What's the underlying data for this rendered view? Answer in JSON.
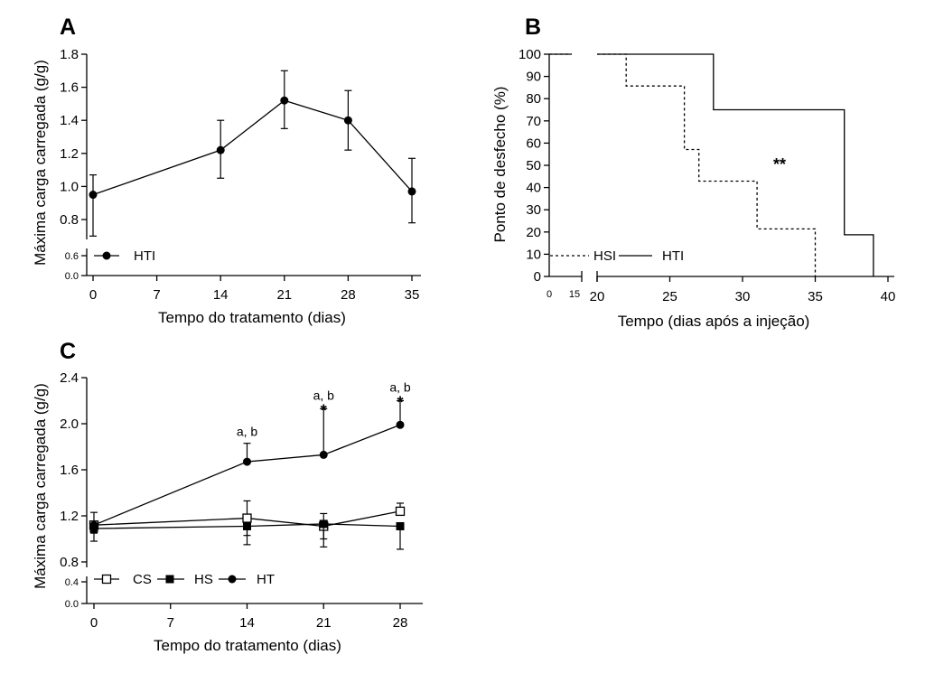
{
  "colors": {
    "line": "#000000",
    "background": "#ffffff"
  },
  "chart_data": [
    {
      "panel": "A",
      "type": "line",
      "xlabel": "Tempo do tratamento (dias)",
      "ylabel": "Máxima carga carregada (g/g)",
      "xlim": [
        0,
        35
      ],
      "x_ticks": [
        0,
        7,
        14,
        21,
        28,
        35
      ],
      "y_ticks_main": [
        0.8,
        1.0,
        1.2,
        1.4,
        1.6,
        1.8
      ],
      "y_ticks_low": [
        0.0,
        0.6
      ],
      "axis_break": "y",
      "legend_position": "bottom-left",
      "series": [
        {
          "name": "HTI",
          "marker": "filled-circle",
          "x": [
            0,
            14,
            21,
            28,
            35
          ],
          "y": [
            0.95,
            1.22,
            1.52,
            1.4,
            0.97
          ],
          "err_low": [
            0.7,
            1.05,
            1.35,
            1.22,
            0.78
          ],
          "err_high": [
            1.07,
            1.4,
            1.7,
            1.58,
            1.17
          ]
        }
      ]
    },
    {
      "panel": "B",
      "type": "line",
      "subtype": "step",
      "xlabel": "Tempo (dias após a injeção)",
      "ylabel": "Ponto de desfecho (%)",
      "xlim": [
        0,
        40
      ],
      "x_ticks_left": [
        0,
        15
      ],
      "x_ticks_main": [
        20,
        25,
        30,
        35,
        40
      ],
      "axis_break": "x",
      "y_ticks": [
        0,
        10,
        20,
        30,
        40,
        50,
        60,
        70,
        80,
        90,
        100
      ],
      "annotation": "**",
      "legend_position": "bottom-left",
      "series": [
        {
          "name": "HSI",
          "style": "dashed",
          "x": [
            0,
            22,
            26,
            27,
            31,
            35
          ],
          "y": [
            100,
            85.7,
            57.1,
            42.9,
            21.4,
            0
          ]
        },
        {
          "name": "HTI",
          "style": "solid",
          "x": [
            0,
            28,
            37,
            39
          ],
          "y": [
            100,
            75,
            18.75,
            0
          ]
        }
      ]
    },
    {
      "panel": "C",
      "type": "line",
      "xlabel": "Tempo do tratamento (dias)",
      "ylabel": "Máxima carga carregada (g/g)",
      "xlim": [
        0,
        28
      ],
      "x_ticks": [
        0,
        7,
        14,
        21,
        28
      ],
      "y_ticks_main": [
        0.8,
        1.2,
        1.6,
        2.0,
        2.4
      ],
      "y_ticks_low": [
        0.0,
        0.4
      ],
      "axis_break": "y",
      "legend_position": "bottom-left",
      "annotations": [
        {
          "x": 14,
          "text": "a, b",
          "star": false
        },
        {
          "x": 21,
          "text": "a, b",
          "star": true
        },
        {
          "x": 28,
          "text": "a, b",
          "star": true
        }
      ],
      "star_text": "*",
      "series": [
        {
          "name": "CS",
          "marker": "open-square",
          "x": [
            0,
            14,
            21,
            28
          ],
          "y": [
            1.12,
            1.18,
            1.11,
            1.24
          ],
          "err_low": [
            1.05,
            1.03,
            1.0,
            1.24
          ],
          "err_high": [
            1.12,
            1.33,
            1.22,
            1.31
          ]
        },
        {
          "name": "HS",
          "marker": "filled-square",
          "x": [
            0,
            14,
            21,
            28
          ],
          "y": [
            1.09,
            1.11,
            1.13,
            1.11
          ],
          "err_low": [
            0.98,
            0.95,
            0.93,
            0.91
          ],
          "err_high": [
            1.09,
            1.11,
            1.13,
            1.11
          ]
        },
        {
          "name": "HT",
          "marker": "filled-circle",
          "x": [
            0,
            14,
            21,
            28
          ],
          "y": [
            1.12,
            1.67,
            1.73,
            1.99
          ],
          "err_low": [
            1.12,
            1.67,
            1.73,
            1.99
          ],
          "err_high": [
            1.23,
            1.83,
            2.13,
            2.2
          ]
        }
      ]
    }
  ]
}
